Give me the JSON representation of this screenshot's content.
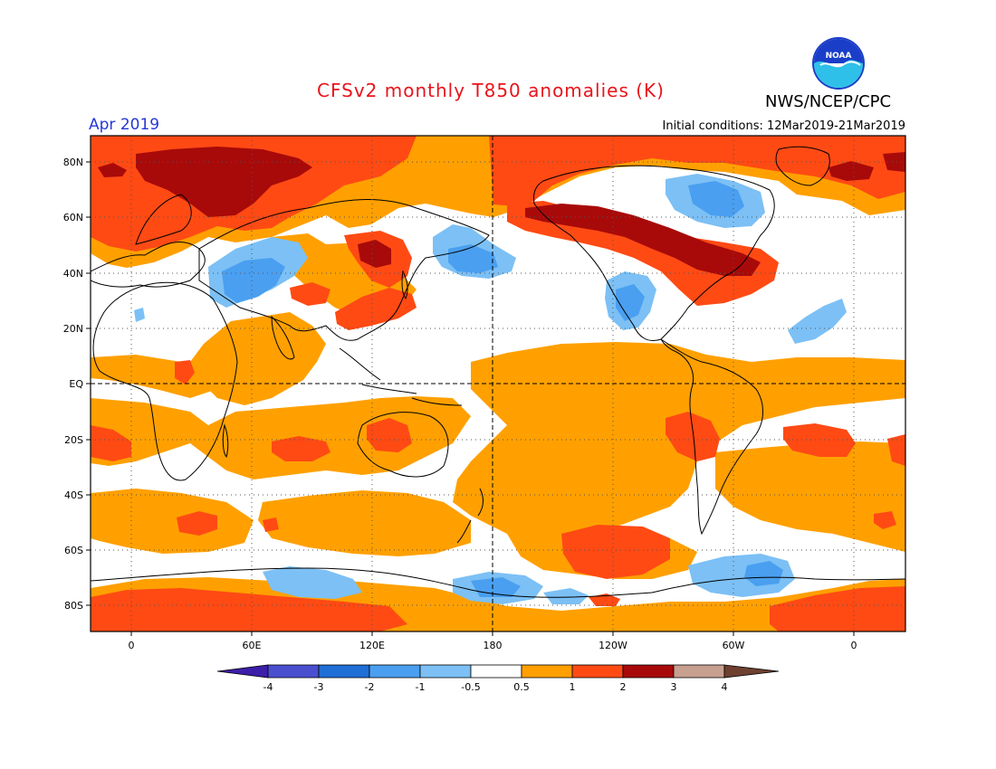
{
  "title": "CFSv2 monthly T850 anomalies (K)",
  "month": "Apr 2019",
  "agency": "NWS/NCEP/CPC",
  "logo_text": "NOAA",
  "initial_conditions": "Initial conditions: 12Mar2019-21Mar2019",
  "axes": {
    "lat_ticks": [
      "80N",
      "60N",
      "40N",
      "20N",
      "EQ",
      "20S",
      "40S",
      "60S",
      "80S"
    ],
    "lon_ticks": [
      "0",
      "60E",
      "120E",
      "180",
      "120W",
      "60W",
      "0"
    ]
  },
  "colorbar": {
    "labels": [
      "-4",
      "-3",
      "-2",
      "-1",
      "-0.5",
      "0.5",
      "1",
      "2",
      "3",
      "4"
    ],
    "colors": [
      "#3d1ea8",
      "#4a4fd0",
      "#1f6fd6",
      "#4a9ff0",
      "#7cc0f5",
      "#ffffff",
      "#ffa000",
      "#ff4a14",
      "#a80a0a",
      "#c8a090",
      "#6e4030"
    ]
  },
  "colors": {
    "title": "#e8141c",
    "month": "#2438d8",
    "light_blue": "#7cc0f5",
    "mid_blue": "#4a9ff0",
    "orange": "#ffa000",
    "red_orange": "#ff4a14",
    "dark_red": "#a80a0a"
  }
}
